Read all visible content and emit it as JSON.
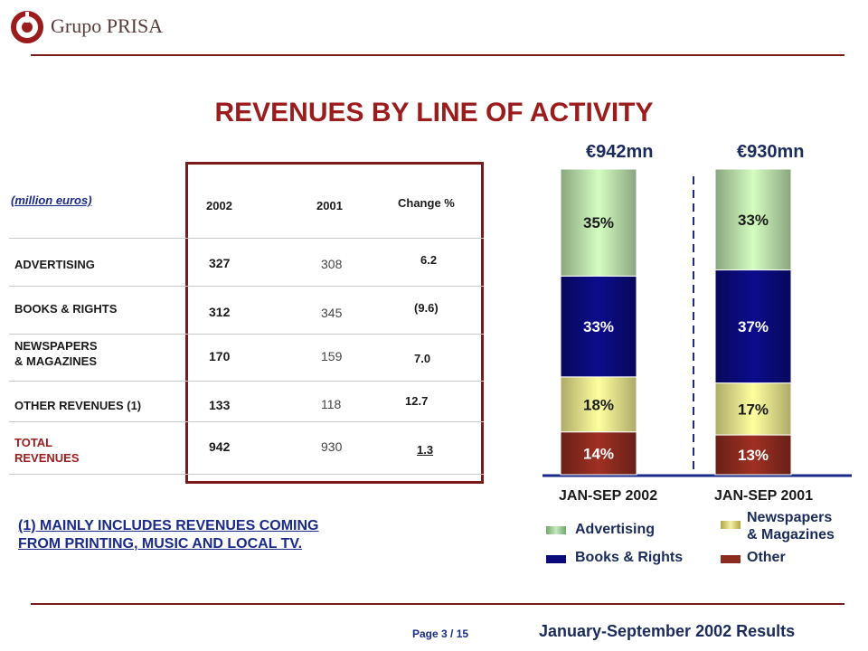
{
  "header": {
    "logo_text": "Grupo PRISA"
  },
  "title": "REVENUES BY LINE OF ACTIVITY",
  "table": {
    "units": "(million euros)",
    "col_2002": "2002",
    "col_2001": "2001",
    "col_change": "Change %",
    "rows": [
      {
        "label": "ADVERTISING",
        "v2002": "327",
        "v2001": "308",
        "change": "6.2"
      },
      {
        "label": "BOOKS & RIGHTS",
        "v2002": "312",
        "v2001": "345",
        "change": "(9.6)"
      },
      {
        "label": "NEWSPAPERS\n& MAGAZINES",
        "v2002": "170",
        "v2001": "159",
        "change": "7.0"
      },
      {
        "label": "OTHER REVENUES (1)",
        "v2002": "133",
        "v2001": "118",
        "change": "12.7"
      },
      {
        "label": "TOTAL\nREVENUES",
        "v2002": "942",
        "v2001": "930",
        "change": "1.3"
      }
    ]
  },
  "footnote": "(1) MAINLY INCLUDES REVENUES COMING\nFROM PRINTING, MUSIC AND LOCAL TV.",
  "chart_data": {
    "type": "bar",
    "stacked": true,
    "normalized": true,
    "categories": [
      "JAN-SEP 2002",
      "JAN-SEP 2001"
    ],
    "totals": [
      "€942mn",
      "€930mn"
    ],
    "series": [
      {
        "name": "Other",
        "values": [
          14,
          13
        ],
        "color": "#8b2a1e"
      },
      {
        "name": "Newspapers & Magazines",
        "values": [
          18,
          17
        ],
        "color": "#e8e28a"
      },
      {
        "name": "Books & Rights",
        "values": [
          33,
          37
        ],
        "color": "#0a0a7a"
      },
      {
        "name": "Advertising",
        "values": [
          35,
          33
        ],
        "color": "#b8dca8"
      }
    ],
    "legend": [
      {
        "name": "Advertising",
        "color": "#b8dca8"
      },
      {
        "name": "Newspapers\n& Magazines",
        "color": "#e8e28a"
      },
      {
        "name": "Books & Rights",
        "color": "#0a0a7a"
      },
      {
        "name": "Other",
        "color": "#8b2a1e"
      }
    ]
  },
  "footer": {
    "page": "Page 3 / 15",
    "results": "January-September 2002 Results"
  }
}
